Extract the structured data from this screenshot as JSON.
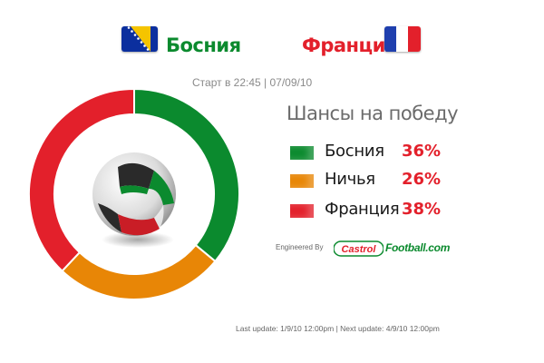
{
  "match": {
    "home": {
      "name": "Босния",
      "color": "#0b8a2e",
      "flag_icon": "bosnia-flag-icon"
    },
    "away": {
      "name": "Франция",
      "color": "#e3202b",
      "flag_icon": "france-flag-icon"
    },
    "start": "Старт в 22:45 | 07/09/10"
  },
  "chances": {
    "title": "Шансы на победу",
    "rows": [
      {
        "label": "Босния",
        "value": "36%",
        "color": "#0b8a2e"
      },
      {
        "label": "Ничья",
        "value": "26%",
        "color": "#e88606"
      },
      {
        "label": "Франция",
        "value": "38%",
        "color": "#e3202b"
      }
    ]
  },
  "chart_data": {
    "type": "pie",
    "variant": "donut",
    "categories": [
      "Босния",
      "Ничья",
      "Франция"
    ],
    "values": [
      36,
      26,
      38
    ],
    "colors": [
      "#0b8a2e",
      "#e88606",
      "#e3202b"
    ],
    "center_icon": "soccer-ball-icon"
  },
  "sponsor": {
    "engineered_by": "Engineered By",
    "castrol": "Castrol",
    "football": "Football.com"
  },
  "footer": {
    "last_update": "Last update: 1/9/10 12:00pm | Next update: 4/9/10 12:00pm"
  }
}
